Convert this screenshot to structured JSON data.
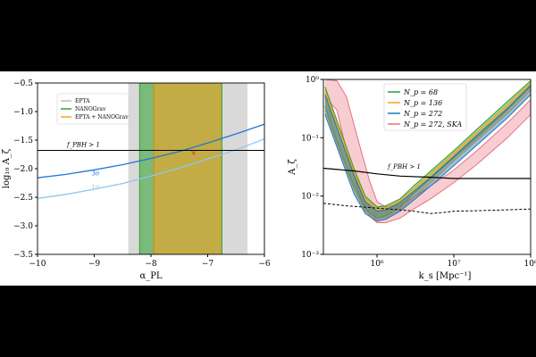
{
  "chart_data": [
    {
      "type": "line",
      "xlabel": "α_PL",
      "ylabel": "log₁₀ A_ζ",
      "xlim": [
        -10,
        -6
      ],
      "ylim": [
        -3.5,
        -0.5
      ],
      "xticks": [
        "−10",
        "−9",
        "−8",
        "−7",
        "−6"
      ],
      "yticks": [
        "−3.5",
        "−3.0",
        "−2.5",
        "−2.0",
        "−1.5",
        "−1.0",
        "−0.5"
      ],
      "legend": {
        "position": "top-left",
        "entries": [
          "EPTA",
          "NANOGrav",
          "EPTA + NANOGrav"
        ]
      },
      "bands": [
        {
          "name": "EPTA",
          "x": [
            -8.4,
            -6.3
          ],
          "color": "#d9d9d9"
        },
        {
          "name": "NANOGrav",
          "x": [
            -8.2,
            -6.75
          ],
          "color": "#2ca02c"
        },
        {
          "name": "EPTA + NANOGrav",
          "x": [
            -7.95,
            -6.75
          ],
          "color": "#ff9f1c"
        }
      ],
      "series": [
        {
          "color": "#1f77d4",
          "label": "3σ",
          "x": [
            -10,
            -9.5,
            -9,
            -8.5,
            -8,
            -7.5,
            -7,
            -6.5,
            -6
          ],
          "y": [
            -2.16,
            -2.1,
            -2.02,
            -1.93,
            -1.82,
            -1.7,
            -1.55,
            -1.39,
            -1.22
          ]
        },
        {
          "color": "#8ec8ec",
          "label": "1σ",
          "x": [
            -10,
            -9.5,
            -9,
            -8.5,
            -8,
            -7.5,
            -7,
            -6.5,
            -6
          ],
          "y": [
            -2.52,
            -2.45,
            -2.36,
            -2.26,
            -2.13,
            -1.99,
            -1.83,
            -1.67,
            -1.48
          ]
        }
      ],
      "hline": {
        "y": -1.68,
        "label": "f_PBH > 1"
      },
      "marker": {
        "x": -7.25,
        "y": -1.72,
        "symbol": "×"
      }
    },
    {
      "type": "line",
      "xlabel": "k_s [Mpc⁻¹]",
      "ylabel": "A_ζ",
      "xscale": "log",
      "yscale": "log",
      "xlim": [
        200000,
        100000000
      ],
      "ylim": [
        0.001,
        1
      ],
      "xticks": [
        {
          "value": 1000000,
          "label": "10⁶"
        },
        {
          "value": 10000000,
          "label": "10⁷"
        },
        {
          "value": 100000000,
          "label": "10⁸"
        }
      ],
      "yticks": [
        {
          "value": 0.001,
          "label": "10⁻³"
        },
        {
          "value": 0.01,
          "label": "10⁻²"
        },
        {
          "value": 0.1,
          "label": "10⁻¹"
        },
        {
          "value": 1,
          "label": "10⁰"
        }
      ],
      "legend": {
        "position": "top-right"
      },
      "series": [
        {
          "name": "N_p = 68",
          "color": "#2ca02c",
          "x": [
            210000,
            300000,
            500000,
            700000,
            1000000,
            1300000,
            2000000,
            3000000,
            5000000,
            10000000,
            20000000,
            50000000,
            100000000
          ],
          "lower": [
            0.35,
            0.09,
            0.015,
            0.006,
            0.0042,
            0.0046,
            0.0065,
            0.011,
            0.02,
            0.045,
            0.1,
            0.3,
            0.75
          ],
          "upper": [
            0.75,
            0.2,
            0.03,
            0.01,
            0.0065,
            0.0068,
            0.009,
            0.015,
            0.027,
            0.06,
            0.14,
            0.42,
            0.95
          ]
        },
        {
          "name": "N_p = 136",
          "color": "#ff9f1c",
          "x": [
            210000,
            300000,
            500000,
            700000,
            1000000,
            1300000,
            2000000,
            3000000,
            5000000,
            10000000,
            20000000,
            50000000,
            100000000
          ],
          "lower": [
            0.3,
            0.08,
            0.013,
            0.0055,
            0.004,
            0.0043,
            0.006,
            0.0095,
            0.017,
            0.04,
            0.09,
            0.26,
            0.65
          ],
          "upper": [
            0.65,
            0.18,
            0.027,
            0.009,
            0.006,
            0.0063,
            0.0085,
            0.0135,
            0.024,
            0.055,
            0.125,
            0.37,
            0.88
          ]
        },
        {
          "name": "N_p = 272",
          "color": "#1f77b4",
          "x": [
            210000,
            300000,
            500000,
            700000,
            1000000,
            1300000,
            2000000,
            3000000,
            5000000,
            10000000,
            20000000,
            50000000,
            100000000
          ],
          "lower": [
            0.25,
            0.07,
            0.011,
            0.005,
            0.0037,
            0.004,
            0.0055,
            0.0085,
            0.015,
            0.033,
            0.075,
            0.22,
            0.55
          ],
          "upper": [
            0.55,
            0.15,
            0.023,
            0.008,
            0.0055,
            0.0058,
            0.0078,
            0.012,
            0.021,
            0.048,
            0.11,
            0.32,
            0.8
          ]
        },
        {
          "name": "N_p = 272, SKA",
          "color": "#e8707e",
          "x": [
            210000,
            300000,
            400000,
            600000,
            800000,
            1000000,
            1300000,
            2000000,
            3000000,
            5000000,
            10000000,
            20000000,
            50000000,
            100000000
          ],
          "lower": [
            0.5,
            0.3,
            0.06,
            0.01,
            0.0045,
            0.0035,
            0.0035,
            0.0042,
            0.006,
            0.009,
            0.017,
            0.035,
            0.1,
            0.25
          ],
          "upper": [
            1,
            0.95,
            0.5,
            0.07,
            0.018,
            0.008,
            0.0065,
            0.007,
            0.0095,
            0.015,
            0.028,
            0.06,
            0.18,
            0.45
          ]
        }
      ],
      "solid_line": {
        "label": "f_PBH > 1",
        "x": [
          200000,
          500000,
          1000000,
          2000000,
          5000000,
          10000000,
          30000000,
          100000000
        ],
        "y": [
          0.03,
          0.027,
          0.024,
          0.022,
          0.021,
          0.02,
          0.02,
          0.02
        ]
      },
      "dashed_line": {
        "x": [
          200000,
          400000,
          1000000,
          2000000,
          3000000,
          5000000,
          8000000,
          10000000,
          20000000,
          50000000,
          100000000
        ],
        "y": [
          0.0075,
          0.0068,
          0.0062,
          0.0058,
          0.0055,
          0.005,
          0.0053,
          0.0055,
          0.0056,
          0.0058,
          0.006
        ]
      }
    }
  ]
}
